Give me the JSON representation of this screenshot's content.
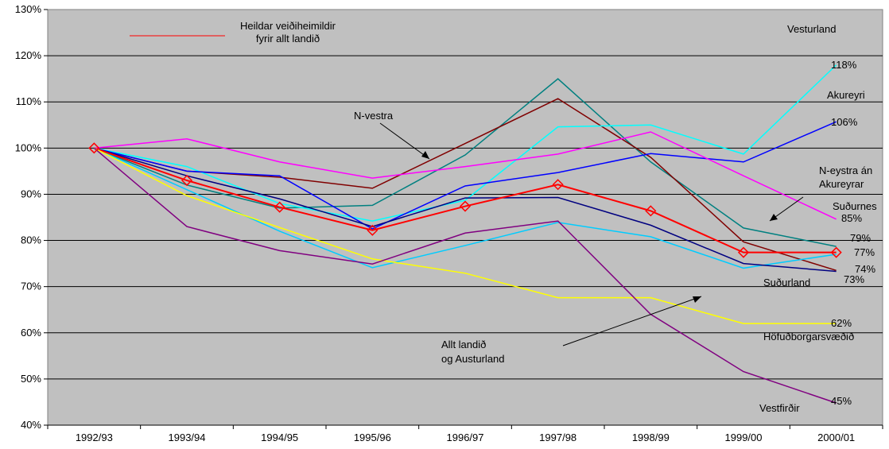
{
  "chart_data": {
    "type": "line",
    "categories": [
      "1992/93",
      "1993/94",
      "1994/95",
      "1995/96",
      "1996/97",
      "1997/98",
      "1998/99",
      "1999/00",
      "2000/01"
    ],
    "y_ticks": [
      "40%",
      "50%",
      "60%",
      "70%",
      "80%",
      "90%",
      "100%",
      "110%",
      "120%",
      "130%"
    ],
    "ylim": [
      40,
      130
    ],
    "grid": "horizontal",
    "background": "#c0c0c0",
    "series": [
      {
        "name": "Vesturland",
        "color": "#008080",
        "values": [
          100,
          92,
          87,
          87.6,
          98.5,
          115,
          97,
          82.7,
          78.7
        ]
      },
      {
        "name": "N-vestra",
        "color": "#800000",
        "values": [
          100,
          95,
          93.7,
          91.3,
          101,
          110.7,
          98,
          79.7,
          73.5
        ]
      },
      {
        "name": "Akureyri",
        "color": "#00ffff",
        "values": [
          100,
          96,
          88,
          84.2,
          88.7,
          104.6,
          105,
          98.7,
          118
        ]
      },
      {
        "name": "",
        "color": "#0000ff",
        "values": [
          100,
          95,
          94,
          82.5,
          91.8,
          94.7,
          98.8,
          97,
          105.7
        ]
      },
      {
        "name": "Suðurnes",
        "color": "#ff00ff",
        "values": [
          100,
          102,
          97,
          93.5,
          96,
          98.7,
          103.5,
          94,
          84.6
        ]
      },
      {
        "name": "",
        "color": "#00ccff",
        "values": [
          100,
          91,
          82,
          74.1,
          78.9,
          83.9,
          80.8,
          74,
          77
        ]
      },
      {
        "name": "Suðurland",
        "color": "#000080",
        "values": [
          100,
          94,
          89,
          83,
          89.2,
          89.3,
          83.3,
          75,
          73.3
        ]
      },
      {
        "name": "Heildar veiðiheimildir fyrir allt landið",
        "color": "#ff0000",
        "values": [
          100,
          93,
          87.2,
          82.2,
          87.4,
          92.1,
          86.4,
          77.4,
          77.4
        ]
      },
      {
        "name": "Höfuðborgarsvæðið",
        "color": "#ffff00",
        "values": [
          100,
          89.7,
          82.8,
          76,
          72.9,
          67.6,
          67.6,
          62,
          62
        ]
      },
      {
        "name": "Vestfirðir",
        "color": "#800080",
        "values": [
          100,
          83,
          77.8,
          74.9,
          81.6,
          84.2,
          64,
          51.6,
          44.8
        ]
      }
    ],
    "marker_series": "Heildar veiðiheimildir fyrir allt landið",
    "legend_text": [
      "Heildar veiðiheimildir",
      "fyrir allt landið"
    ],
    "annotations": {
      "vesturland": "Vesturland",
      "p118": "118%",
      "akureyri": "Akureyri",
      "p106": "106%",
      "nvestra": "N-vestra",
      "neystra1": "N-eystra án",
      "neystra2": "Akureyrar",
      "sudurnes": "Suðurnes",
      "p85": "85%",
      "p79": "79%",
      "p77": "77%",
      "p74": "74%",
      "sudurland": "Suðurland",
      "p73": "73%",
      "p62": "62%",
      "hofud": "Höfuðborgarsvæðið",
      "allt1": "Allt landið",
      "allt2": "og Austurland",
      "p45": "45%",
      "vestfirdir": "Vestfirðir"
    }
  }
}
